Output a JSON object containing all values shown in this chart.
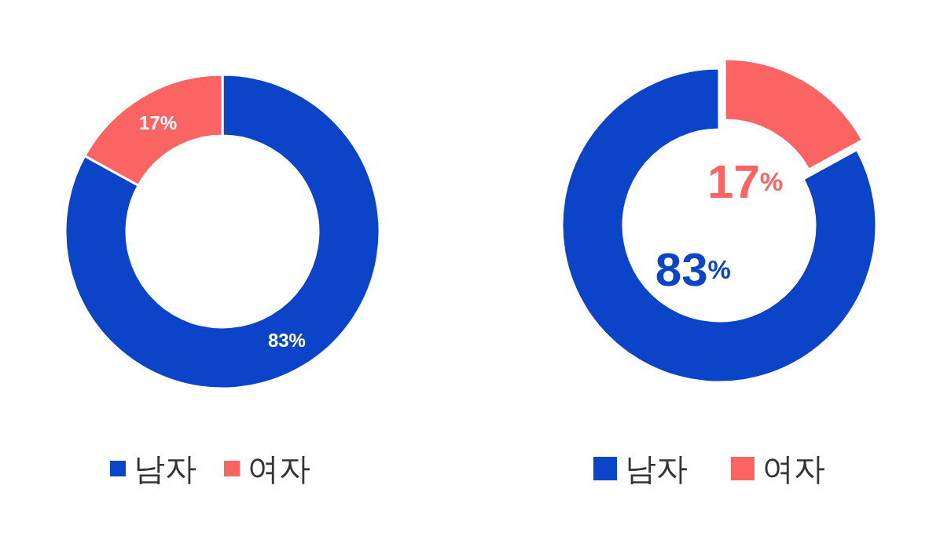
{
  "chart_data": [
    {
      "type": "donut",
      "categories": [
        "남자",
        "여자"
      ],
      "values": [
        83,
        17
      ],
      "colors": [
        "#0b44c8",
        "#fc6464"
      ],
      "value_labels": [
        "83%",
        "17%"
      ],
      "legend": "bottom"
    },
    {
      "type": "donut",
      "categories": [
        "남자",
        "여자"
      ],
      "values": [
        83,
        17
      ],
      "colors": [
        "#0b44c8",
        "#fc6464"
      ],
      "value_labels": [
        "83%",
        "17%"
      ],
      "legend": "bottom"
    }
  ]
}
